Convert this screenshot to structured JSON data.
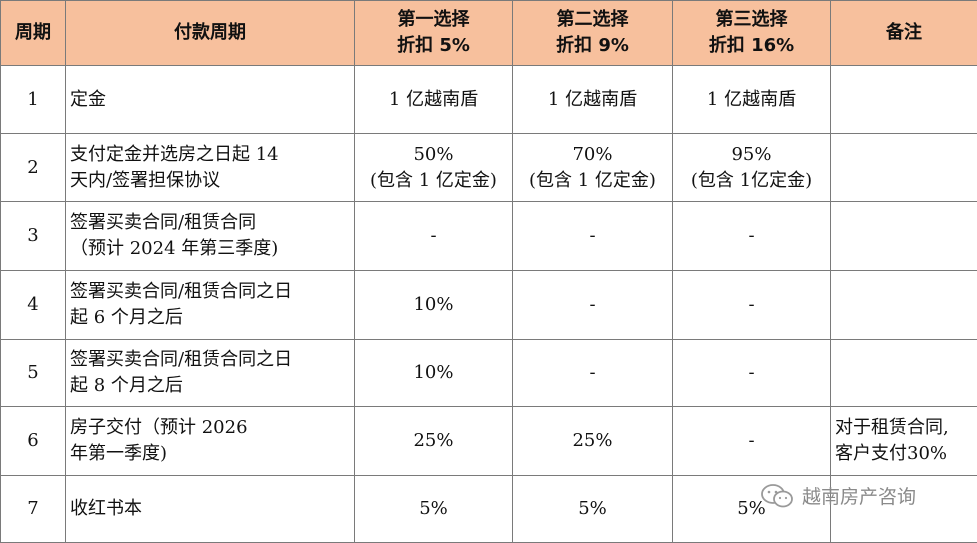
{
  "header": {
    "period": "周期",
    "payment_period": "付款周期",
    "option1": [
      "第一选择",
      "折扣 5%"
    ],
    "option2": [
      "第二选择",
      "折扣 9%"
    ],
    "option3": [
      "第三选择",
      "折扣 16%"
    ],
    "remarks": "备注"
  },
  "rows": [
    {
      "no": "1",
      "desc": [
        "定金"
      ],
      "o1": [
        "1 亿越南盾"
      ],
      "o2": [
        "1 亿越南盾"
      ],
      "o3": [
        "1 亿越南盾"
      ],
      "note": []
    },
    {
      "no": "2",
      "desc": [
        "支付定金并选房之日起 14",
        "天内/签署担保协议"
      ],
      "o1": [
        "50%",
        "(包含 1 亿定金)"
      ],
      "o2": [
        "70%",
        "(包含 1 亿定金)"
      ],
      "o3": [
        "95%",
        "(包含 1亿定金)"
      ],
      "note": []
    },
    {
      "no": "3",
      "desc": [
        "签署买卖合同/租赁合同",
        "（预计 2024 年第三季度)"
      ],
      "o1": [
        "-"
      ],
      "o2": [
        "-"
      ],
      "o3": [
        "-"
      ],
      "note": []
    },
    {
      "no": "4",
      "desc": [
        "签署买卖合同/租赁合同之日",
        "起 6 个月之后"
      ],
      "o1": [
        "10%"
      ],
      "o2": [
        "-"
      ],
      "o3": [
        "-"
      ],
      "note": []
    },
    {
      "no": "5",
      "desc": [
        "签署买卖合同/租赁合同之日",
        "起 8 个月之后"
      ],
      "o1": [
        "10%"
      ],
      "o2": [
        "-"
      ],
      "o3": [
        "-"
      ],
      "note": []
    },
    {
      "no": "6",
      "desc": [
        "房子交付（预计 2026",
        "年第一季度)"
      ],
      "o1": [
        "25%"
      ],
      "o2": [
        "25%"
      ],
      "o3": [
        "-"
      ],
      "note": [
        "对于租赁合同,",
        "客户支付30%"
      ]
    },
    {
      "no": "7",
      "desc": [
        "收红书本"
      ],
      "o1": [
        "5%"
      ],
      "o2": [
        "5%"
      ],
      "o3": [
        "5%"
      ],
      "note": []
    }
  ],
  "watermark": {
    "text": "越南房产咨询",
    "icon": "wechat-icon"
  }
}
